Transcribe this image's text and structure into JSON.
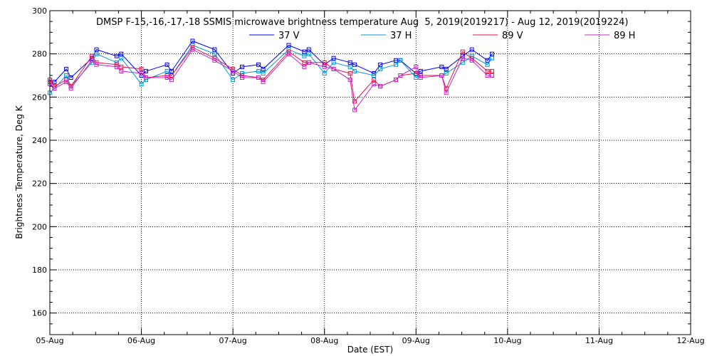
{
  "chart_data": {
    "type": "line",
    "title": "DMSP F-15,-16,-17,-18 SSMIS microwave brightness temperature Aug  5, 2019(2019217) - Aug 12, 2019(2019224)",
    "xlabel": "Date (EST)",
    "ylabel": "Brightness Temperature, Deg K",
    "xlim": [
      "2019-08-05T00:00",
      "2019-08-12T00:00"
    ],
    "ylim": [
      150,
      300
    ],
    "yticks": [
      160,
      180,
      200,
      220,
      240,
      260,
      280,
      300
    ],
    "xtick_labels": [
      "05-Aug",
      "06-Aug",
      "07-Aug",
      "08-Aug",
      "09-Aug",
      "10-Aug",
      "11-Aug",
      "12-Aug"
    ],
    "grid": true,
    "legend_position": "top-center",
    "colors": {
      "37 V": "#0000ff",
      "37 H": "#0099dd",
      "89 V": "#ee1144",
      "89 H": "#cc22cc"
    },
    "series": [
      {
        "name": "37 V",
        "points": [
          [
            "2019-08-05T00:00",
            267
          ],
          [
            "2019-08-05T01:12",
            267
          ],
          [
            "2019-08-05T04:19",
            273
          ],
          [
            "2019-08-05T05:31",
            269
          ],
          [
            "2019-08-05T11:02",
            278
          ],
          [
            "2019-08-05T12:14",
            282
          ],
          [
            "2019-08-05T17:31",
            279
          ],
          [
            "2019-08-05T18:43",
            280
          ],
          [
            "2019-08-06T00:00",
            270
          ],
          [
            "2019-08-06T01:12",
            272
          ],
          [
            "2019-08-06T06:43",
            275
          ],
          [
            "2019-08-06T07:55",
            272
          ],
          [
            "2019-08-06T13:26",
            286
          ],
          [
            "2019-08-06T19:12",
            282
          ],
          [
            "2019-08-07T00:00",
            271
          ],
          [
            "2019-08-07T02:24",
            274
          ],
          [
            "2019-08-07T06:43",
            275
          ],
          [
            "2019-08-07T07:55",
            273
          ],
          [
            "2019-08-07T14:38",
            284
          ],
          [
            "2019-08-07T18:43",
            281
          ],
          [
            "2019-08-07T19:55",
            282
          ],
          [
            "2019-08-08T00:00",
            275
          ],
          [
            "2019-08-08T02:24",
            278
          ],
          [
            "2019-08-08T06:43",
            276
          ],
          [
            "2019-08-08T07:55",
            275
          ],
          [
            "2019-08-08T12:58",
            271
          ],
          [
            "2019-08-08T14:38",
            275
          ],
          [
            "2019-08-08T18:43",
            277
          ],
          [
            "2019-08-08T19:55",
            277
          ],
          [
            "2019-08-09T00:00",
            271
          ],
          [
            "2019-08-09T01:12",
            272
          ],
          [
            "2019-08-09T06:43",
            274
          ],
          [
            "2019-08-09T07:55",
            273
          ],
          [
            "2019-08-09T12:14",
            279
          ],
          [
            "2019-08-09T14:38",
            282
          ],
          [
            "2019-08-09T18:43",
            277
          ],
          [
            "2019-08-09T19:55",
            280
          ]
        ]
      },
      {
        "name": "37 H",
        "points": [
          [
            "2019-08-05T00:00",
            262
          ],
          [
            "2019-08-05T01:12",
            264
          ],
          [
            "2019-08-05T04:19",
            270
          ],
          [
            "2019-08-05T05:31",
            265
          ],
          [
            "2019-08-05T11:02",
            276
          ],
          [
            "2019-08-05T12:14",
            280
          ],
          [
            "2019-08-05T17:31",
            276
          ],
          [
            "2019-08-05T18:43",
            278
          ],
          [
            "2019-08-06T00:00",
            266
          ],
          [
            "2019-08-06T01:12",
            268
          ],
          [
            "2019-08-06T06:43",
            272
          ],
          [
            "2019-08-06T07:55",
            270
          ],
          [
            "2019-08-06T13:26",
            284
          ],
          [
            "2019-08-06T19:12",
            280
          ],
          [
            "2019-08-07T00:00",
            268
          ],
          [
            "2019-08-07T02:24",
            271
          ],
          [
            "2019-08-07T06:43",
            272
          ],
          [
            "2019-08-07T07:55",
            271
          ],
          [
            "2019-08-07T14:38",
            282
          ],
          [
            "2019-08-07T18:43",
            279
          ],
          [
            "2019-08-07T19:55",
            280
          ],
          [
            "2019-08-08T00:00",
            271
          ],
          [
            "2019-08-08T02:24",
            276
          ],
          [
            "2019-08-08T06:43",
            274
          ],
          [
            "2019-08-08T07:55",
            272
          ],
          [
            "2019-08-08T12:58",
            270
          ],
          [
            "2019-08-08T14:38",
            273
          ],
          [
            "2019-08-08T18:43",
            275
          ],
          [
            "2019-08-08T19:55",
            277
          ],
          [
            "2019-08-09T00:00",
            269
          ],
          [
            "2019-08-09T01:12",
            270
          ],
          [
            "2019-08-09T06:43",
            270
          ],
          [
            "2019-08-09T07:55",
            271
          ],
          [
            "2019-08-09T12:14",
            276
          ],
          [
            "2019-08-09T14:38",
            279
          ],
          [
            "2019-08-09T18:43",
            275
          ],
          [
            "2019-08-09T19:55",
            278
          ]
        ]
      },
      {
        "name": "89 V",
        "points": [
          [
            "2019-08-05T00:00",
            268
          ],
          [
            "2019-08-05T01:12",
            265
          ],
          [
            "2019-08-05T04:19",
            268
          ],
          [
            "2019-08-05T05:31",
            265
          ],
          [
            "2019-08-05T11:02",
            279
          ],
          [
            "2019-08-05T12:14",
            276
          ],
          [
            "2019-08-05T17:31",
            275
          ],
          [
            "2019-08-05T18:43",
            274
          ],
          [
            "2019-08-06T00:00",
            273
          ],
          [
            "2019-08-06T01:12",
            269
          ],
          [
            "2019-08-06T06:43",
            270
          ],
          [
            "2019-08-06T07:55",
            270
          ],
          [
            "2019-08-06T13:26",
            283
          ],
          [
            "2019-08-06T19:12",
            278
          ],
          [
            "2019-08-07T00:00",
            273
          ],
          [
            "2019-08-07T02:24",
            270
          ],
          [
            "2019-08-07T06:43",
            269
          ],
          [
            "2019-08-07T07:55",
            268
          ],
          [
            "2019-08-07T14:38",
            281
          ],
          [
            "2019-08-07T18:43",
            276
          ],
          [
            "2019-08-07T19:55",
            276
          ],
          [
            "2019-08-08T00:00",
            276
          ],
          [
            "2019-08-08T02:24",
            273
          ],
          [
            "2019-08-08T06:43",
            271
          ],
          [
            "2019-08-08T07:55",
            258
          ],
          [
            "2019-08-08T12:58",
            268
          ],
          [
            "2019-08-08T14:38",
            265
          ],
          [
            "2019-08-08T18:43",
            268
          ],
          [
            "2019-08-08T19:55",
            270
          ],
          [
            "2019-08-09T00:00",
            271
          ],
          [
            "2019-08-09T01:12",
            270
          ],
          [
            "2019-08-09T06:43",
            270
          ],
          [
            "2019-08-09T07:55",
            264
          ],
          [
            "2019-08-09T12:14",
            281
          ],
          [
            "2019-08-09T14:38",
            278
          ],
          [
            "2019-08-09T18:43",
            272
          ],
          [
            "2019-08-09T19:55",
            272
          ]
        ]
      },
      {
        "name": "89 H",
        "points": [
          [
            "2019-08-05T00:00",
            266
          ],
          [
            "2019-08-05T01:12",
            264
          ],
          [
            "2019-08-05T04:19",
            267
          ],
          [
            "2019-08-05T05:31",
            264
          ],
          [
            "2019-08-05T11:02",
            277
          ],
          [
            "2019-08-05T12:14",
            275
          ],
          [
            "2019-08-05T17:31",
            274
          ],
          [
            "2019-08-05T18:43",
            272
          ],
          [
            "2019-08-06T00:00",
            271
          ],
          [
            "2019-08-06T01:12",
            269
          ],
          [
            "2019-08-06T06:43",
            269
          ],
          [
            "2019-08-06T07:55",
            268
          ],
          [
            "2019-08-06T13:26",
            282
          ],
          [
            "2019-08-06T19:12",
            277
          ],
          [
            "2019-08-07T00:00",
            272
          ],
          [
            "2019-08-07T02:24",
            269
          ],
          [
            "2019-08-07T06:43",
            269
          ],
          [
            "2019-08-07T07:55",
            267
          ],
          [
            "2019-08-07T14:38",
            280
          ],
          [
            "2019-08-07T18:43",
            274
          ],
          [
            "2019-08-07T19:55",
            276
          ],
          [
            "2019-08-08T00:00",
            274
          ],
          [
            "2019-08-08T02:24",
            273
          ],
          [
            "2019-08-08T06:43",
            268
          ],
          [
            "2019-08-08T07:55",
            254
          ],
          [
            "2019-08-08T12:58",
            266
          ],
          [
            "2019-08-08T14:38",
            265
          ],
          [
            "2019-08-08T18:43",
            268
          ],
          [
            "2019-08-08T19:55",
            270
          ],
          [
            "2019-08-09T00:00",
            274
          ],
          [
            "2019-08-09T01:12",
            269
          ],
          [
            "2019-08-09T06:43",
            270
          ],
          [
            "2019-08-09T07:55",
            262
          ],
          [
            "2019-08-09T12:14",
            278
          ],
          [
            "2019-08-09T14:38",
            277
          ],
          [
            "2019-08-09T18:43",
            270
          ],
          [
            "2019-08-09T19:55",
            270
          ]
        ]
      }
    ]
  }
}
